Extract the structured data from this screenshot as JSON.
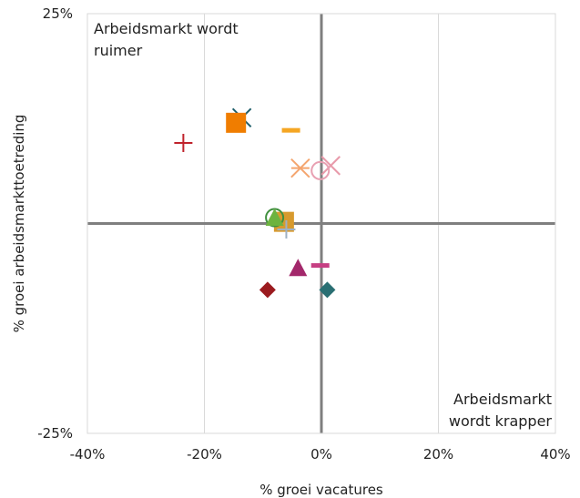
{
  "chart_data": {
    "type": "scatter",
    "title": "",
    "xlabel": "% groei vacatures",
    "ylabel": "% groei arbeidsmarkttoetreding",
    "xlim": [
      -40,
      40
    ],
    "ylim": [
      -25,
      25
    ],
    "x_ticks": [
      -40,
      -20,
      0,
      20,
      40
    ],
    "x_tick_labels": [
      "-40%",
      "-20%",
      "0%",
      "20%",
      "40%"
    ],
    "y_ticks": [
      -25,
      25
    ],
    "y_tick_labels": [
      "-25%",
      "25%"
    ],
    "grid": "vertical",
    "zero_lines": true,
    "legend": "none",
    "annotations": [
      {
        "lines": [
          "Arbeidsmarkt wordt",
          "ruimer"
        ],
        "position": "top-left"
      },
      {
        "lines": [
          "Arbeidsmarkt",
          "wordt krapper"
        ],
        "position": "bottom-right"
      }
    ],
    "points": [
      {
        "x": -13.6,
        "y": 12.6,
        "marker": "x",
        "color": "#1f5f6b"
      },
      {
        "x": -14.6,
        "y": 12.0,
        "marker": "square",
        "color": "#f07d00"
      },
      {
        "x": -23.6,
        "y": 9.6,
        "marker": "plus",
        "color": "#c0232c"
      },
      {
        "x": -5.2,
        "y": 11.1,
        "marker": "dash",
        "color": "#f5a623"
      },
      {
        "x": -3.6,
        "y": 6.6,
        "marker": "asterisk",
        "color": "#f4a56e"
      },
      {
        "x": 1.6,
        "y": 6.9,
        "marker": "x",
        "color": "#e89aaa"
      },
      {
        "x": -0.2,
        "y": 6.3,
        "marker": "circle",
        "color": "#e8a0b2"
      },
      {
        "x": -6.4,
        "y": 0.2,
        "marker": "square",
        "color": "#d79a2e"
      },
      {
        "x": -6.0,
        "y": -0.7,
        "marker": "plus",
        "color": "#9fb1c4"
      },
      {
        "x": -8.0,
        "y": 0.7,
        "marker": "circle",
        "color": "#3f8f3e"
      },
      {
        "x": -8.0,
        "y": 0.6,
        "marker": "triangle",
        "color": "#6db33f"
      },
      {
        "x": -4.0,
        "y": -5.4,
        "marker": "triangle",
        "color": "#a3286b"
      },
      {
        "x": -0.2,
        "y": -5.0,
        "marker": "dash",
        "color": "#c63f83"
      },
      {
        "x": -9.2,
        "y": -7.9,
        "marker": "diamond",
        "color": "#9b1b1f"
      },
      {
        "x": 1.0,
        "y": -7.9,
        "marker": "diamond",
        "color": "#2a6f73"
      }
    ]
  }
}
